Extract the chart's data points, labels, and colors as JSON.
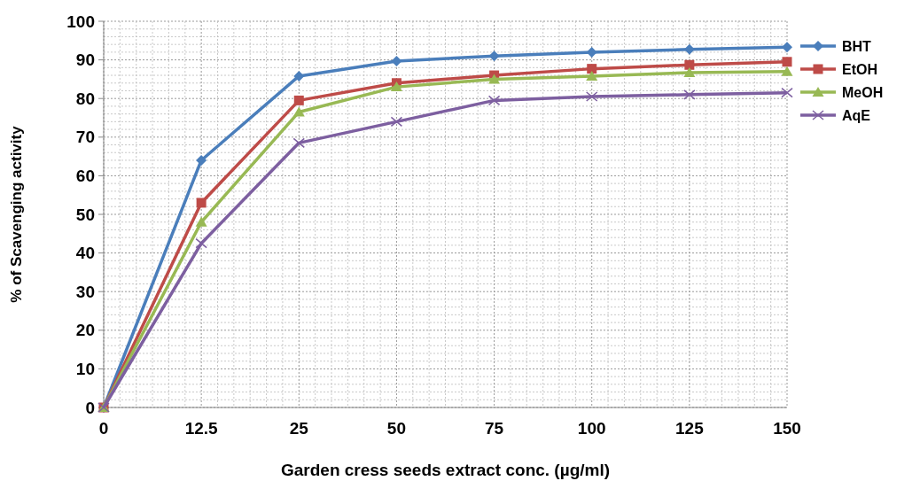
{
  "chart_data": {
    "type": "line",
    "xlabel": "Garden cress seeds extract conc. (µg/ml)",
    "ylabel": "% of Scavenging activity",
    "categories": [
      "0",
      "12.5",
      "25",
      "50",
      "75",
      "100",
      "125",
      "150"
    ],
    "series": [
      {
        "name": "BHT",
        "color": "#4a7ebb",
        "marker": "diamond",
        "values": [
          0,
          64,
          85.8,
          89.7,
          91,
          92,
          92.7,
          93.3
        ]
      },
      {
        "name": "EtOH",
        "color": "#be4b48",
        "marker": "square",
        "values": [
          0,
          53,
          79.5,
          84,
          86,
          87.7,
          88.7,
          89.5
        ]
      },
      {
        "name": "MeOH",
        "color": "#98b954",
        "marker": "triangle",
        "values": [
          0,
          48,
          76.5,
          83,
          85,
          85.8,
          86.7,
          87
        ]
      },
      {
        "name": "AqE",
        "color": "#7d5fa0",
        "marker": "cross",
        "values": [
          0,
          42.5,
          68.5,
          74,
          79.5,
          80.5,
          81,
          81.5
        ]
      }
    ],
    "ylim": [
      0,
      100
    ],
    "yticks": [
      0,
      10,
      20,
      30,
      40,
      50,
      60,
      70,
      80,
      90,
      100
    ],
    "grid": true,
    "legend": "right",
    "line_style": "solid"
  }
}
